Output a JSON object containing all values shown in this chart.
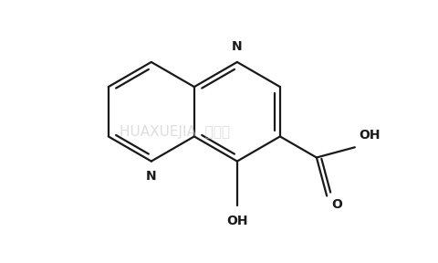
{
  "background_color": "#ffffff",
  "line_color": "#1a1a1a",
  "line_width": 1.6,
  "fig_width": 4.8,
  "fig_height": 2.88,
  "dpi": 100,
  "xlim": [
    -3.2,
    4.2
  ],
  "ylim": [
    -3.0,
    2.2
  ]
}
